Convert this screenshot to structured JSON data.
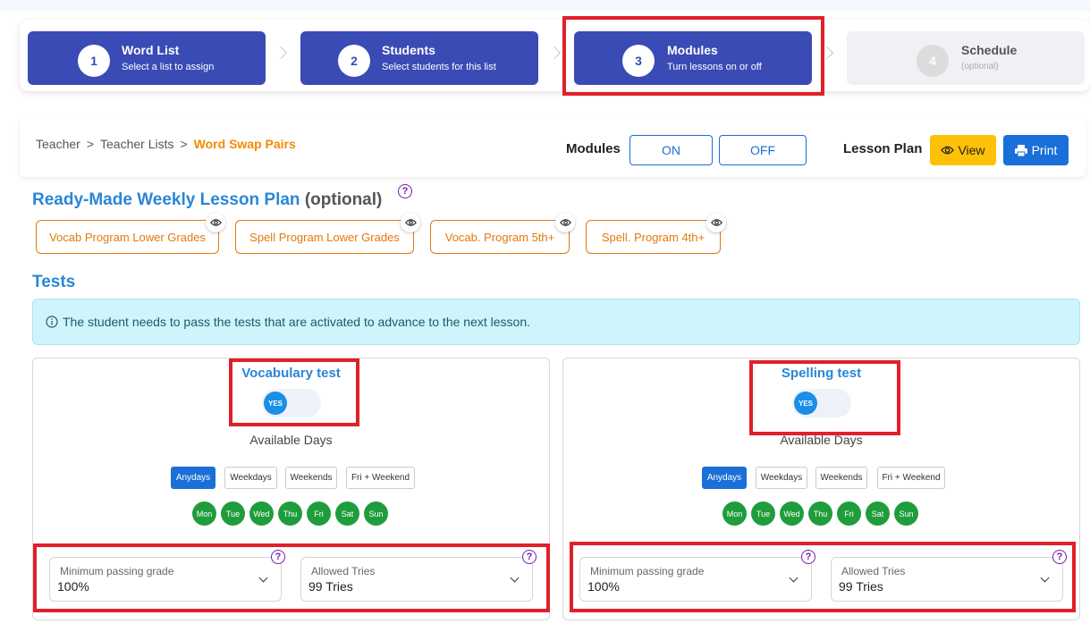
{
  "steps": [
    {
      "num": "1",
      "title": "Word List",
      "subtitle": "Select a list to assign"
    },
    {
      "num": "2",
      "title": "Students",
      "subtitle": "Select students for this list"
    },
    {
      "num": "3",
      "title": "Modules",
      "subtitle": "Turn lessons on or off"
    },
    {
      "num": "4",
      "title": "Schedule",
      "subtitle": "(optional)"
    }
  ],
  "breadcrumb": {
    "items": [
      "Teacher",
      "Teacher Lists"
    ],
    "separator": ">",
    "current": "Word Swap Pairs"
  },
  "modules": {
    "label": "Modules",
    "on_label": "ON",
    "off_label": "OFF"
  },
  "lesson_plan": {
    "label": "Lesson Plan",
    "view_label": "View",
    "print_label": "Print",
    "view_icon": "eye-icon",
    "print_icon": "printer-icon"
  },
  "weekly_plan": {
    "title": "Ready-Made Weekly Lesson Plan",
    "optional": "(optional)",
    "help": "?",
    "plans": [
      "Vocab Program Lower Grades",
      "Spell Program Lower Grades",
      "Vocab. Program 5th+",
      "Spell. Program 4th+"
    ]
  },
  "tests": {
    "title": "Tests",
    "alert": "The student needs to pass the tests that are activated to advance to the next lesson.",
    "cards": [
      {
        "title": "Vocabulary test",
        "toggle": "YES",
        "available_days_label": "Available Days",
        "day_options": [
          "Anydays",
          "Weekdays",
          "Weekends",
          "Fri + Weekend"
        ],
        "days": [
          "Mon",
          "Tue",
          "Wed",
          "Thu",
          "Fri",
          "Sat",
          "Sun"
        ],
        "min_grade_label": "Minimum passing grade",
        "min_grade_value": "100%",
        "tries_label": "Allowed Tries",
        "tries_value": "99 Tries"
      },
      {
        "title": "Spelling test",
        "toggle": "YES",
        "available_days_label": "Available Days",
        "day_options": [
          "Anydays",
          "Weekdays",
          "Weekends",
          "Fri + Weekend"
        ],
        "days": [
          "Mon",
          "Tue",
          "Wed",
          "Thu",
          "Fri",
          "Sat",
          "Sun"
        ],
        "min_grade_label": "Minimum passing grade",
        "min_grade_value": "100%",
        "tries_label": "Allowed Tries",
        "tries_value": "99 Tries"
      }
    ]
  },
  "colors": {
    "accent": "#3a4bb5",
    "link": "#2a86d6",
    "highlight": "#e0202a",
    "warning": "#ffc107",
    "primary": "#1a6fd8",
    "success": "#1f9d3c",
    "plan": "#e07a10"
  }
}
